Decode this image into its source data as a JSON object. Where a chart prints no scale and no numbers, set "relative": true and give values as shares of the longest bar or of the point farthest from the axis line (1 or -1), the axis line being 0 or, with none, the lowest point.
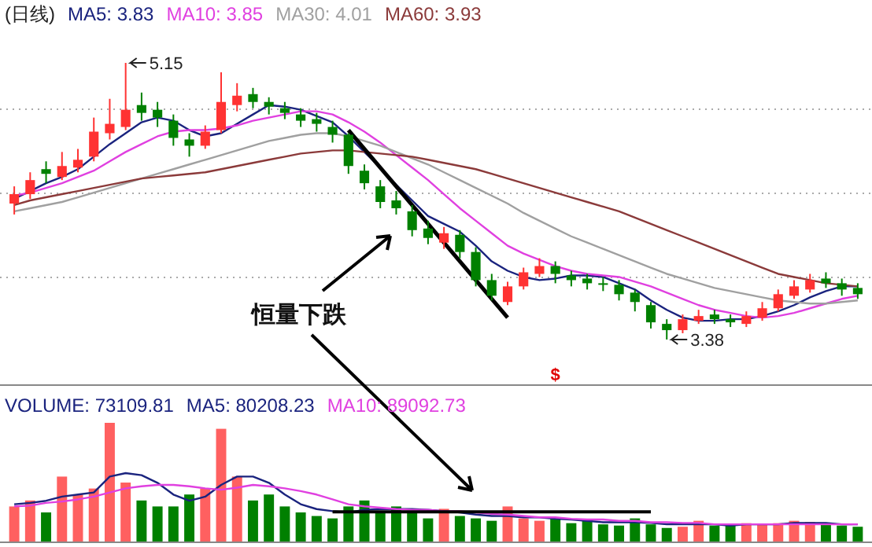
{
  "chart_data": [
    {
      "type": "candlestick",
      "title": "(日线)",
      "legend": "top left",
      "grid": true,
      "categories": [
        null,
        null,
        null,
        null,
        null,
        null,
        null,
        null,
        null,
        null,
        null,
        null,
        null,
        null,
        null,
        null,
        null,
        null,
        null,
        null,
        null,
        null,
        null,
        null,
        null,
        null,
        null,
        null,
        null,
        null,
        null,
        null,
        null,
        null,
        null,
        null,
        null,
        null,
        null,
        null,
        null,
        null,
        null,
        null,
        null,
        null,
        null,
        null,
        null,
        null,
        null,
        null,
        null,
        null
      ],
      "ohlc": [
        [
          4.25,
          4.36,
          4.18,
          4.31
        ],
        [
          4.31,
          4.45,
          4.28,
          4.4
        ],
        [
          4.47,
          4.52,
          4.38,
          4.44
        ],
        [
          4.42,
          4.58,
          4.4,
          4.49
        ],
        [
          4.48,
          4.6,
          4.45,
          4.53
        ],
        [
          4.55,
          4.8,
          4.52,
          4.71
        ],
        [
          4.7,
          4.92,
          4.66,
          4.76
        ],
        [
          4.74,
          5.15,
          4.72,
          4.85
        ],
        [
          4.88,
          4.96,
          4.78,
          4.83
        ],
        [
          4.85,
          4.9,
          4.74,
          4.8
        ],
        [
          4.78,
          4.82,
          4.62,
          4.67
        ],
        [
          4.66,
          4.7,
          4.55,
          4.62
        ],
        [
          4.62,
          4.75,
          4.6,
          4.71
        ],
        [
          4.72,
          5.09,
          4.7,
          4.9
        ],
        [
          4.88,
          5.02,
          4.84,
          4.94
        ],
        [
          4.95,
          4.99,
          4.86,
          4.9
        ],
        [
          4.9,
          4.93,
          4.82,
          4.87
        ],
        [
          4.86,
          4.9,
          4.79,
          4.83
        ],
        [
          4.82,
          4.86,
          4.74,
          4.78
        ],
        [
          4.79,
          4.83,
          4.71,
          4.76
        ],
        [
          4.74,
          4.78,
          4.64,
          4.69
        ],
        [
          4.69,
          4.7,
          4.44,
          4.49
        ],
        [
          4.46,
          4.5,
          4.34,
          4.38
        ],
        [
          4.36,
          4.4,
          4.22,
          4.26
        ],
        [
          4.27,
          4.33,
          4.18,
          4.22
        ],
        [
          4.2,
          4.24,
          4.04,
          4.08
        ],
        [
          4.09,
          4.14,
          3.99,
          4.03
        ],
        [
          4.0,
          4.1,
          3.96,
          4.06
        ],
        [
          4.05,
          4.08,
          3.9,
          3.94
        ],
        [
          3.94,
          3.97,
          3.72,
          3.76
        ],
        [
          3.76,
          3.8,
          3.63,
          3.66
        ],
        [
          3.62,
          3.75,
          3.6,
          3.72
        ],
        [
          3.72,
          3.84,
          3.7,
          3.81
        ],
        [
          3.8,
          3.9,
          3.78,
          3.85
        ],
        [
          3.85,
          3.88,
          3.74,
          3.8
        ],
        [
          3.79,
          3.82,
          3.72,
          3.76
        ],
        [
          3.77,
          3.8,
          3.7,
          3.74
        ],
        [
          3.74,
          3.78,
          3.69,
          3.73
        ],
        [
          3.73,
          3.76,
          3.63,
          3.67
        ],
        [
          3.68,
          3.7,
          3.56,
          3.62
        ],
        [
          3.6,
          3.62,
          3.45,
          3.49
        ],
        [
          3.48,
          3.51,
          3.38,
          3.44
        ],
        [
          3.44,
          3.54,
          3.42,
          3.51
        ],
        [
          3.5,
          3.57,
          3.48,
          3.53
        ],
        [
          3.54,
          3.57,
          3.48,
          3.51
        ],
        [
          3.51,
          3.54,
          3.46,
          3.49
        ],
        [
          3.48,
          3.56,
          3.46,
          3.53
        ],
        [
          3.52,
          3.62,
          3.5,
          3.58
        ],
        [
          3.58,
          3.7,
          3.56,
          3.67
        ],
        [
          3.66,
          3.76,
          3.64,
          3.72
        ],
        [
          3.7,
          3.8,
          3.68,
          3.76
        ],
        [
          3.77,
          3.81,
          3.71,
          3.74
        ],
        [
          3.74,
          3.77,
          3.66,
          3.7
        ],
        [
          3.71,
          3.74,
          3.64,
          3.67
        ]
      ],
      "series": [
        {
          "name": "MA5: 3.83",
          "type": "line",
          "color": "#1a237e",
          "values": [
            4.28,
            4.33,
            4.38,
            4.42,
            4.47,
            4.55,
            4.63,
            4.7,
            4.77,
            4.8,
            4.78,
            4.72,
            4.68,
            4.7,
            4.76,
            4.82,
            4.88,
            4.87,
            4.85,
            4.81,
            4.77,
            4.68,
            4.58,
            4.48,
            4.37,
            4.27,
            4.17,
            4.12,
            4.07,
            3.98,
            3.88,
            3.82,
            3.78,
            3.76,
            3.77,
            3.79,
            3.79,
            3.78,
            3.74,
            3.7,
            3.63,
            3.57,
            3.52,
            3.5,
            3.5,
            3.51,
            3.51,
            3.53,
            3.56,
            3.6,
            3.65,
            3.69,
            3.72,
            3.72
          ]
        },
        {
          "name": "MA10: 3.85",
          "type": "line",
          "color": "#e040e0",
          "values": [
            4.3,
            4.32,
            4.35,
            4.38,
            4.42,
            4.46,
            4.52,
            4.58,
            4.63,
            4.68,
            4.71,
            4.72,
            4.72,
            4.73,
            4.75,
            4.78,
            4.8,
            4.82,
            4.84,
            4.84,
            4.82,
            4.77,
            4.71,
            4.64,
            4.56,
            4.48,
            4.4,
            4.31,
            4.22,
            4.14,
            4.06,
            3.98,
            3.93,
            3.89,
            3.85,
            3.82,
            3.8,
            3.79,
            3.78,
            3.75,
            3.72,
            3.68,
            3.64,
            3.6,
            3.57,
            3.55,
            3.53,
            3.52,
            3.53,
            3.55,
            3.58,
            3.61,
            3.64,
            3.66
          ]
        },
        {
          "name": "MA30: 4.01",
          "type": "line",
          "color": "#a0a0a0",
          "values": [
            4.2,
            4.22,
            4.24,
            4.26,
            4.29,
            4.32,
            4.35,
            4.38,
            4.41,
            4.44,
            4.47,
            4.5,
            4.53,
            4.56,
            4.59,
            4.62,
            4.65,
            4.67,
            4.69,
            4.7,
            4.7,
            4.68,
            4.65,
            4.62,
            4.58,
            4.54,
            4.5,
            4.45,
            4.4,
            4.35,
            4.3,
            4.25,
            4.19,
            4.14,
            4.09,
            4.04,
            4.0,
            3.96,
            3.92,
            3.88,
            3.84,
            3.8,
            3.77,
            3.74,
            3.71,
            3.69,
            3.67,
            3.65,
            3.63,
            3.62,
            3.61,
            3.61,
            3.62,
            3.63
          ]
        },
        {
          "name": "MA60: 3.93",
          "type": "line",
          "color": "#8b3a3a",
          "values": [
            4.24,
            4.27,
            4.29,
            4.31,
            4.33,
            4.35,
            4.37,
            4.39,
            4.41,
            4.42,
            4.43,
            4.44,
            4.45,
            4.47,
            4.49,
            4.51,
            4.53,
            4.55,
            4.57,
            4.58,
            4.59,
            4.59,
            4.58,
            4.57,
            4.56,
            4.55,
            4.53,
            4.51,
            4.49,
            4.47,
            4.44,
            4.41,
            4.38,
            4.35,
            4.32,
            4.29,
            4.26,
            4.23,
            4.2,
            4.16,
            4.12,
            4.08,
            4.04,
            4.0,
            3.96,
            3.92,
            3.88,
            3.84,
            3.8,
            3.78,
            3.76,
            3.74,
            3.73,
            3.72
          ]
        },
        {
          "type": "line",
          "color": "#000000",
          "values": [
            null,
            null,
            null,
            null,
            null,
            null,
            null,
            null,
            null,
            null,
            null,
            null,
            null,
            null,
            null,
            null,
            null,
            null,
            null,
            null,
            null,
            4.72,
            null,
            null,
            null,
            null,
            null,
            null,
            null,
            null,
            null,
            3.52,
            null,
            null,
            null,
            null,
            null,
            null,
            null,
            null,
            null,
            null,
            null,
            null,
            null,
            null,
            null,
            null,
            null,
            null,
            null,
            null,
            null,
            null
          ]
        }
      ],
      "annotations": [
        "5.15",
        "3.38",
        "恒量下跌",
        "$"
      ]
    },
    {
      "type": "bar",
      "relative": true,
      "categories": [
        null,
        null,
        null,
        null,
        null,
        null,
        null,
        null,
        null,
        null,
        null,
        null,
        null,
        null,
        null,
        null,
        null,
        null,
        null,
        null,
        null,
        null,
        null,
        null,
        null,
        null,
        null,
        null,
        null,
        null,
        null,
        null,
        null,
        null,
        null,
        null,
        null,
        null,
        null,
        null,
        null,
        null,
        null,
        null,
        null,
        null,
        null,
        null,
        null,
        null,
        null,
        null,
        null,
        null
      ],
      "series": [
        {
          "name": "VOLUME: 73109.81",
          "color": "#1a237e",
          "values": [
            0.3,
            0.35,
            0.25,
            0.55,
            0.4,
            0.45,
            1.0,
            0.5,
            0.35,
            0.3,
            0.3,
            0.4,
            0.45,
            0.95,
            0.55,
            0.35,
            0.4,
            0.3,
            0.25,
            0.22,
            0.2,
            0.3,
            0.35,
            0.25,
            0.3,
            0.25,
            0.2,
            0.28,
            0.22,
            0.2,
            0.18,
            0.3,
            0.2,
            0.18,
            0.2,
            0.16,
            0.18,
            0.15,
            0.14,
            0.2,
            0.15,
            0.12,
            0.13,
            0.18,
            0.14,
            0.14,
            0.16,
            0.15,
            0.16,
            0.18,
            0.17,
            0.15,
            0.14,
            0.13
          ],
          "colors": [
            "#ff6060",
            "#ff6060",
            "#008000",
            "#ff6060",
            "#ff6060",
            "#ff6060",
            "#ff6060",
            "#ff6060",
            "#008000",
            "#008000",
            "#008000",
            "#008000",
            "#ff6060",
            "#ff6060",
            "#ff6060",
            "#008000",
            "#008000",
            "#008000",
            "#008000",
            "#008000",
            "#008000",
            "#008000",
            "#008000",
            "#008000",
            "#008000",
            "#008000",
            "#008000",
            "#ff6060",
            "#008000",
            "#008000",
            "#008000",
            "#ff6060",
            "#ff6060",
            "#ff6060",
            "#008000",
            "#008000",
            "#008000",
            "#008000",
            "#008000",
            "#008000",
            "#008000",
            "#008000",
            "#ff6060",
            "#ff6060",
            "#008000",
            "#008000",
            "#ff6060",
            "#ff6060",
            "#ff6060",
            "#ff6060",
            "#ff6060",
            "#008000",
            "#008000",
            "#008000"
          ]
        }
      ]
    },
    {
      "type": "line",
      "relative": true,
      "categories": [
        null,
        null,
        null,
        null,
        null,
        null,
        null,
        null,
        null,
        null,
        null,
        null,
        null,
        null,
        null,
        null,
        null,
        null,
        null,
        null,
        null,
        null,
        null,
        null,
        null,
        null,
        null,
        null,
        null,
        null,
        null,
        null,
        null,
        null,
        null,
        null,
        null,
        null,
        null,
        null,
        null,
        null,
        null,
        null,
        null,
        null,
        null,
        null,
        null,
        null,
        null,
        null,
        null,
        null
      ],
      "series": [
        {
          "name": "MA5: 80208.23",
          "color": "#1a237e",
          "values": [
            0.55,
            0.57,
            0.6,
            0.66,
            0.69,
            0.72,
            0.95,
            1.0,
            0.97,
            0.86,
            0.69,
            0.6,
            0.66,
            0.83,
            0.95,
            0.95,
            0.86,
            0.69,
            0.55,
            0.48,
            0.45,
            0.43,
            0.47,
            0.48,
            0.48,
            0.48,
            0.47,
            0.45,
            0.43,
            0.4,
            0.38,
            0.38,
            0.36,
            0.36,
            0.34,
            0.33,
            0.31,
            0.29,
            0.29,
            0.29,
            0.28,
            0.26,
            0.26,
            0.26,
            0.26,
            0.24,
            0.26,
            0.26,
            0.26,
            0.28,
            0.28,
            0.28,
            0.26,
            0.26
          ]
        },
        {
          "name": "MA10: 89092.73",
          "color": "#e040e0",
          "values": [
            0.52,
            0.53,
            0.57,
            0.59,
            0.62,
            0.66,
            0.72,
            0.78,
            0.81,
            0.83,
            0.83,
            0.81,
            0.78,
            0.76,
            0.79,
            0.83,
            0.81,
            0.78,
            0.74,
            0.69,
            0.62,
            0.55,
            0.52,
            0.5,
            0.48,
            0.47,
            0.47,
            0.45,
            0.45,
            0.43,
            0.41,
            0.4,
            0.38,
            0.36,
            0.36,
            0.34,
            0.33,
            0.33,
            0.31,
            0.31,
            0.29,
            0.29,
            0.28,
            0.28,
            0.26,
            0.26,
            0.26,
            0.26,
            0.26,
            0.26,
            0.26,
            0.26,
            0.26,
            0.26
          ]
        },
        {
          "color": "#000000",
          "values": [
            null,
            null,
            null,
            null,
            null,
            null,
            null,
            null,
            null,
            null,
            null,
            null,
            null,
            null,
            null,
            null,
            null,
            null,
            null,
            null,
            0.44,
            null,
            null,
            null,
            null,
            null,
            null,
            null,
            null,
            null,
            null,
            null,
            null,
            null,
            null,
            null,
            null,
            null,
            null,
            null,
            0.44,
            null,
            null,
            null,
            null,
            null,
            null,
            null,
            null,
            null,
            null,
            null,
            null,
            null
          ]
        }
      ]
    }
  ]
}
